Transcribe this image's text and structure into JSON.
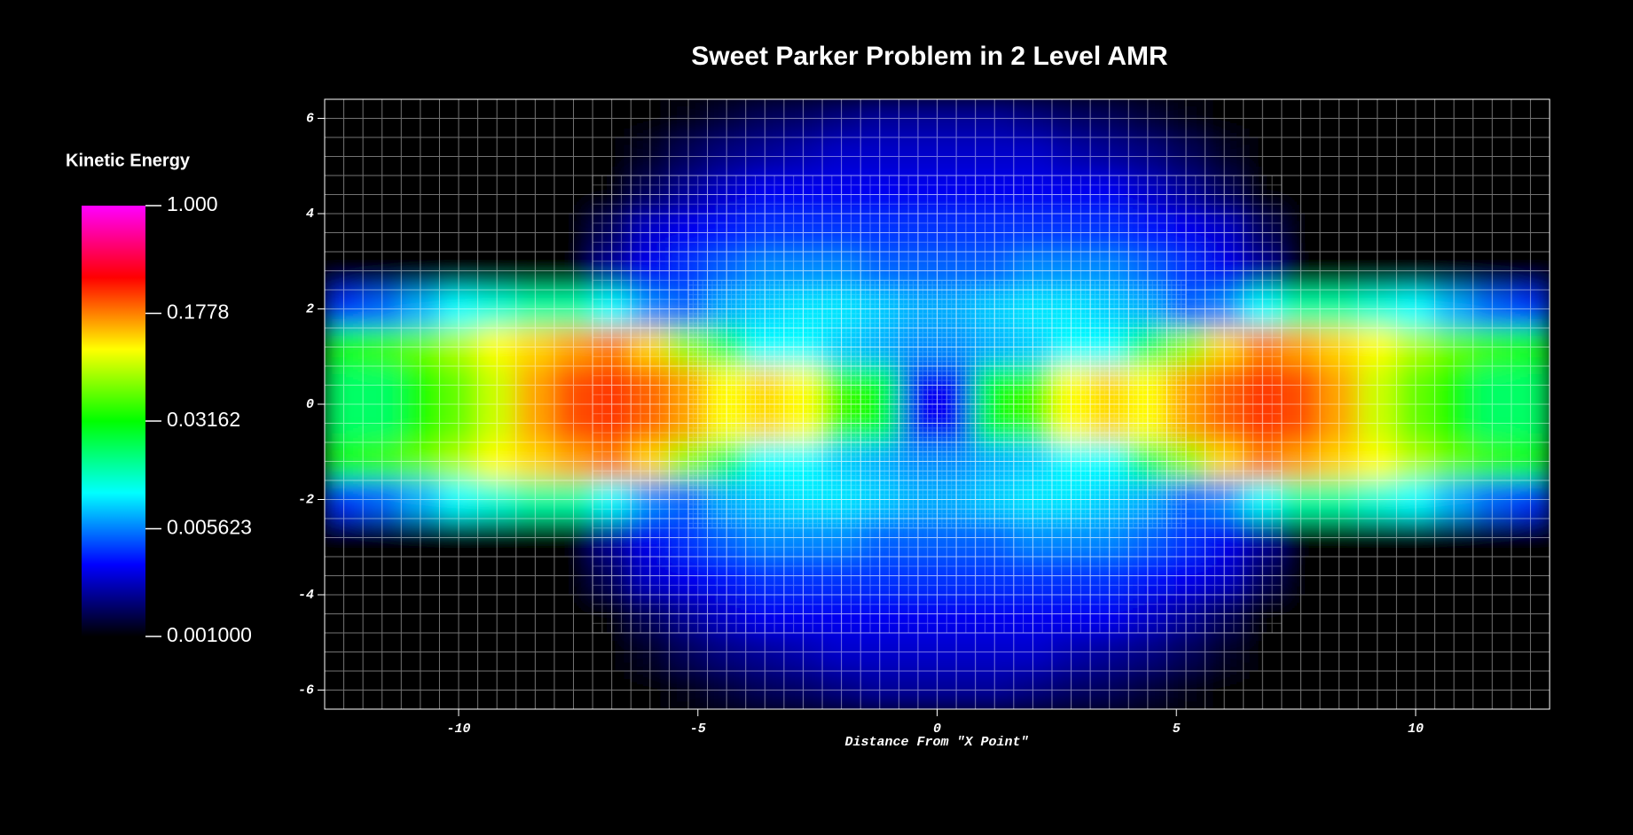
{
  "chart_data": {
    "type": "heatmap",
    "title": "Sweet Parker Problem in 2 Level AMR",
    "colorbar_label": "Kinetic Energy",
    "xlabel": "Distance From \"X Point\"",
    "xlim": [
      -12.8,
      12.8
    ],
    "ylim": [
      -6.4,
      6.4
    ],
    "xticks": [
      -10,
      -5,
      0,
      5,
      10
    ],
    "yticks": [
      -6,
      -4,
      -2,
      0,
      2,
      4,
      6
    ],
    "clim": [
      0.001,
      1
    ],
    "color_log_scale": true,
    "cticks": [
      {
        "value": 1,
        "label": "1.000"
      },
      0.1778,
      0.03162,
      0.005623,
      {
        "value": 0.001,
        "label": "0.001000"
      }
    ],
    "colormap": [
      "#000000",
      "#0000ff",
      "#00ffff",
      "#00ff00",
      "#ffff00",
      "#ff0000",
      "#ff00ff"
    ],
    "x": [
      -12.4,
      -11.6,
      -10.8,
      -10,
      -9.2,
      -8.4,
      -7.6,
      -6.8,
      -6,
      -5.2,
      -4.4,
      -3.6,
      -2.8,
      -2,
      -1.2,
      -0.4,
      0.4,
      1.2,
      2,
      2.8,
      3.6,
      4.4,
      5.2,
      6,
      6.8,
      7.6,
      8.4,
      9.2,
      10,
      10.8,
      11.6,
      12.4
    ],
    "y": [
      6,
      5.2,
      4.4,
      3.6,
      2.8,
      2,
      1.2,
      0.4,
      -0.4,
      -1.2,
      -2,
      -2.8,
      -3.6,
      -4.4,
      -5.2,
      -6
    ],
    "z": [
      [
        0.001,
        0.001,
        0.001,
        0.001,
        0.001,
        0.001,
        0.001,
        0.001,
        0.001,
        0.0011,
        0.0013,
        0.0015,
        0.0016,
        0.0018,
        0.002,
        0.002,
        0.002,
        0.002,
        0.0018,
        0.0016,
        0.0015,
        0.0013,
        0.0011,
        0.001,
        0.001,
        0.001,
        0.001,
        0.001,
        0.001,
        0.001,
        0.001,
        0.001
      ],
      [
        0.001,
        0.001,
        0.001,
        0.001,
        0.001,
        0.001,
        0.001,
        0.001,
        0.0012,
        0.0015,
        0.0018,
        0.002,
        0.0022,
        0.0025,
        0.0025,
        0.0025,
        0.0025,
        0.0025,
        0.0025,
        0.0022,
        0.002,
        0.0018,
        0.0015,
        0.0012,
        0.001,
        0.001,
        0.001,
        0.001,
        0.001,
        0.001,
        0.001,
        0.001
      ],
      [
        0.001,
        0.001,
        0.001,
        0.001,
        0.001,
        0.001,
        0.001,
        0.001,
        0.0015,
        0.002,
        0.0025,
        0.003,
        0.003,
        0.003,
        0.003,
        0.003,
        0.003,
        0.003,
        0.003,
        0.003,
        0.003,
        0.0025,
        0.002,
        0.0015,
        0.001,
        0.001,
        0.001,
        0.001,
        0.001,
        0.001,
        0.001,
        0.001
      ],
      [
        0.001,
        0.001,
        0.001,
        0.001,
        0.001,
        0.001,
        0.001,
        0.0015,
        0.0025,
        0.003,
        0.0035,
        0.004,
        0.004,
        0.004,
        0.004,
        0.004,
        0.004,
        0.004,
        0.004,
        0.004,
        0.004,
        0.0035,
        0.003,
        0.0025,
        0.0015,
        0.001,
        0.001,
        0.001,
        0.001,
        0.001,
        0.001,
        0.001
      ],
      [
        0.001,
        0.001,
        0.001,
        0.001,
        0.001,
        0.001,
        0.001,
        0.002,
        0.003,
        0.004,
        0.005,
        0.006,
        0.006,
        0.006,
        0.005,
        0.005,
        0.005,
        0.005,
        0.006,
        0.006,
        0.006,
        0.005,
        0.004,
        0.003,
        0.002,
        0.001,
        0.001,
        0.001,
        0.001,
        0.001,
        0.001,
        0.001
      ],
      [
        0.004,
        0.005,
        0.007,
        0.01,
        0.012,
        0.015,
        0.015,
        0.01,
        0.006,
        0.005,
        0.007,
        0.008,
        0.009,
        0.009,
        0.008,
        0.007,
        0.007,
        0.008,
        0.009,
        0.009,
        0.008,
        0.007,
        0.005,
        0.006,
        0.01,
        0.015,
        0.015,
        0.012,
        0.01,
        0.007,
        0.005,
        0.004
      ],
      [
        0.035,
        0.04,
        0.05,
        0.07,
        0.1,
        0.12,
        0.15,
        0.18,
        0.12,
        0.06,
        0.02,
        0.01,
        0.01,
        0.008,
        0.007,
        0.006,
        0.006,
        0.007,
        0.008,
        0.01,
        0.01,
        0.02,
        0.06,
        0.12,
        0.18,
        0.15,
        0.12,
        0.1,
        0.07,
        0.05,
        0.04,
        0.035
      ],
      [
        0.02,
        0.02,
        0.035,
        0.05,
        0.08,
        0.15,
        0.22,
        0.25,
        0.2,
        0.15,
        0.1,
        0.12,
        0.1,
        0.04,
        0.03,
        0.003,
        0.003,
        0.03,
        0.04,
        0.1,
        0.12,
        0.1,
        0.15,
        0.2,
        0.25,
        0.22,
        0.15,
        0.08,
        0.05,
        0.035,
        0.02,
        0.02
      ],
      [
        0.02,
        0.02,
        0.035,
        0.05,
        0.08,
        0.15,
        0.22,
        0.25,
        0.2,
        0.15,
        0.1,
        0.12,
        0.1,
        0.04,
        0.03,
        0.003,
        0.003,
        0.03,
        0.04,
        0.1,
        0.12,
        0.1,
        0.15,
        0.2,
        0.25,
        0.22,
        0.15,
        0.08,
        0.05,
        0.035,
        0.02,
        0.02
      ],
      [
        0.035,
        0.04,
        0.05,
        0.07,
        0.1,
        0.12,
        0.15,
        0.18,
        0.12,
        0.06,
        0.02,
        0.01,
        0.01,
        0.008,
        0.007,
        0.006,
        0.006,
        0.007,
        0.008,
        0.01,
        0.01,
        0.02,
        0.06,
        0.12,
        0.18,
        0.15,
        0.12,
        0.1,
        0.07,
        0.05,
        0.04,
        0.035
      ],
      [
        0.004,
        0.005,
        0.007,
        0.01,
        0.012,
        0.015,
        0.015,
        0.01,
        0.006,
        0.005,
        0.007,
        0.008,
        0.009,
        0.009,
        0.008,
        0.007,
        0.007,
        0.008,
        0.009,
        0.009,
        0.008,
        0.007,
        0.005,
        0.006,
        0.01,
        0.015,
        0.015,
        0.012,
        0.01,
        0.007,
        0.005,
        0.004
      ],
      [
        0.001,
        0.001,
        0.001,
        0.001,
        0.001,
        0.001,
        0.001,
        0.002,
        0.003,
        0.004,
        0.005,
        0.006,
        0.006,
        0.006,
        0.005,
        0.005,
        0.005,
        0.005,
        0.006,
        0.006,
        0.006,
        0.005,
        0.004,
        0.003,
        0.002,
        0.001,
        0.001,
        0.001,
        0.001,
        0.001,
        0.001,
        0.001
      ],
      [
        0.001,
        0.001,
        0.001,
        0.001,
        0.001,
        0.001,
        0.001,
        0.0015,
        0.0025,
        0.003,
        0.0035,
        0.004,
        0.004,
        0.004,
        0.004,
        0.004,
        0.004,
        0.004,
        0.004,
        0.004,
        0.004,
        0.0035,
        0.003,
        0.0025,
        0.0015,
        0.001,
        0.001,
        0.001,
        0.001,
        0.001,
        0.001,
        0.001
      ],
      [
        0.001,
        0.001,
        0.001,
        0.001,
        0.001,
        0.001,
        0.001,
        0.001,
        0.0015,
        0.002,
        0.0025,
        0.003,
        0.003,
        0.003,
        0.003,
        0.003,
        0.003,
        0.003,
        0.003,
        0.003,
        0.003,
        0.0025,
        0.002,
        0.0015,
        0.001,
        0.001,
        0.001,
        0.001,
        0.001,
        0.001,
        0.001,
        0.001
      ],
      [
        0.001,
        0.001,
        0.001,
        0.001,
        0.001,
        0.001,
        0.001,
        0.001,
        0.0012,
        0.0015,
        0.0018,
        0.002,
        0.0022,
        0.0025,
        0.0025,
        0.0025,
        0.0025,
        0.0025,
        0.0025,
        0.0022,
        0.002,
        0.0018,
        0.0015,
        0.0012,
        0.001,
        0.001,
        0.001,
        0.001,
        0.001,
        0.001,
        0.001,
        0.001
      ],
      [
        0.001,
        0.001,
        0.001,
        0.001,
        0.001,
        0.001,
        0.001,
        0.001,
        0.001,
        0.0011,
        0.0013,
        0.0015,
        0.0016,
        0.0018,
        0.002,
        0.002,
        0.002,
        0.002,
        0.0018,
        0.0016,
        0.0015,
        0.0013,
        0.0011,
        0.001,
        0.001,
        0.001,
        0.001,
        0.001,
        0.001,
        0.001,
        0.001,
        0.001
      ]
    ]
  }
}
